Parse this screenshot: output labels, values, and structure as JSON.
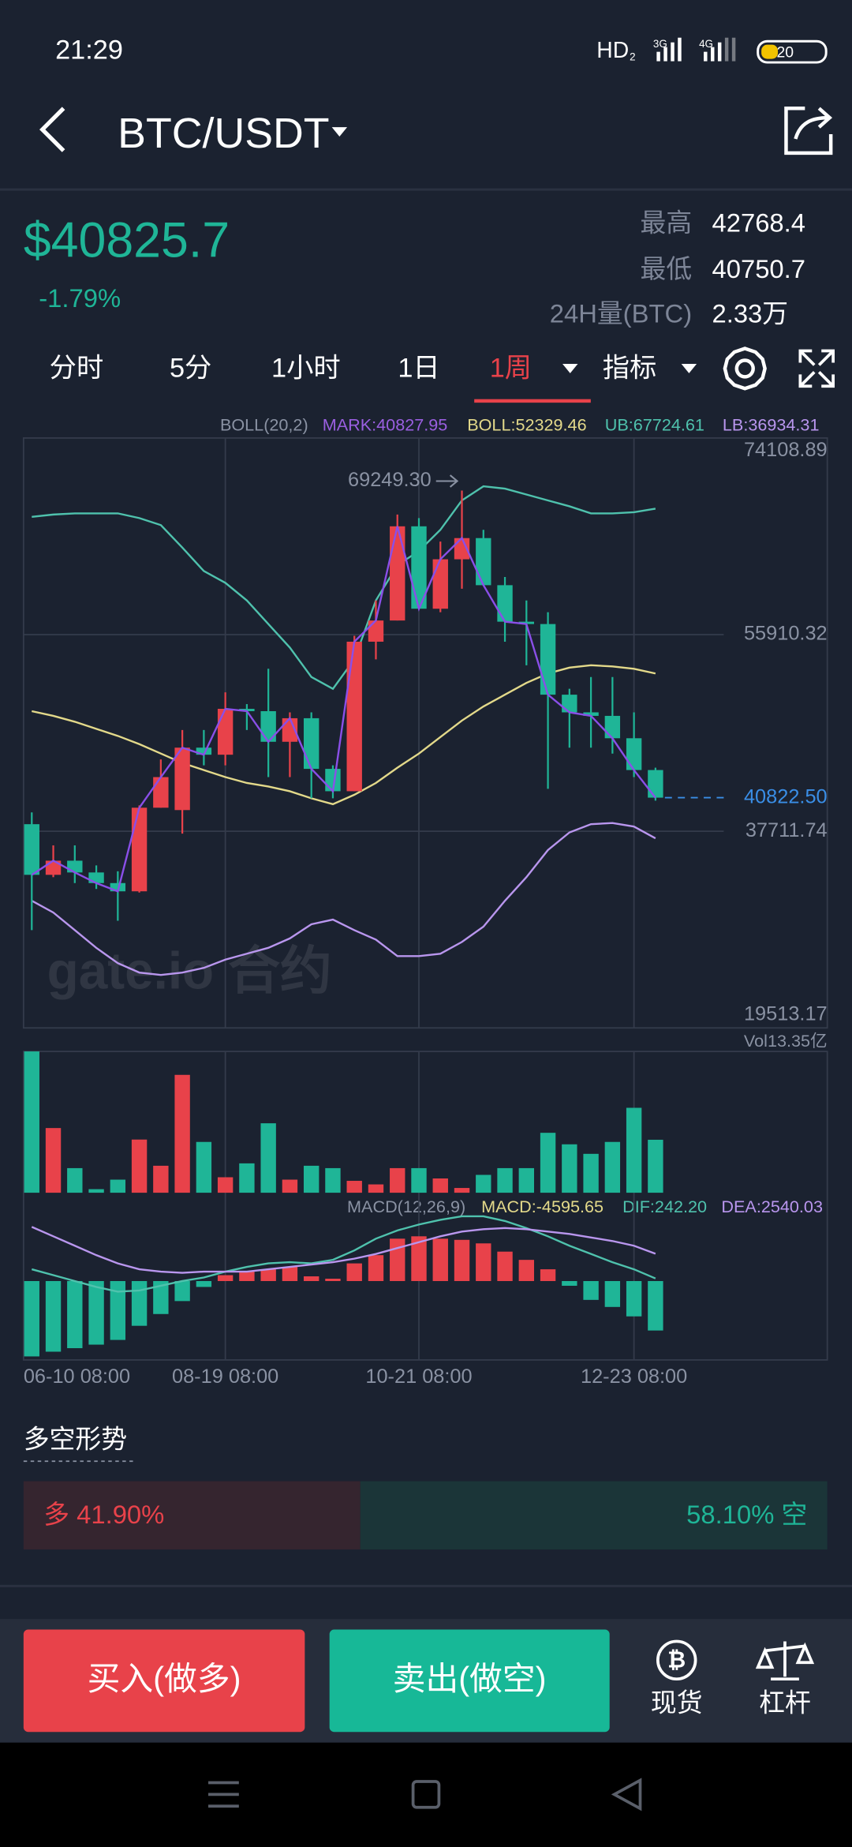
{
  "status_bar": {
    "time": "21:29",
    "hd": "HD",
    "sim": "2",
    "net1": "3G",
    "net2": "4G",
    "battery": "20"
  },
  "header": {
    "pair": "BTC/USDT"
  },
  "ticker": {
    "price": "$40825.7",
    "change": "-1.79%",
    "high_label": "最高",
    "high": "42768.4",
    "low_label": "最低",
    "low": "40750.7",
    "volume_label": "24H量(BTC)",
    "volume": "2.33万"
  },
  "tabs": {
    "items": [
      "分时",
      "5分",
      "1小时",
      "1日",
      "1周",
      "指标"
    ],
    "selected": 4
  },
  "watermark": "gate.io 合约",
  "chart_data": [
    {
      "type": "candlestick",
      "indicator_labels": [
        {
          "text": "BOLL(20,2)",
          "color": "#8a92a3"
        },
        {
          "text": "MARK:40827.95",
          "color": "#9a5fe0"
        },
        {
          "text": "BOLL:52329.46",
          "color": "#e3d98a"
        },
        {
          "text": "UB:67724.61",
          "color": "#4fc2ad"
        },
        {
          "text": "LB:36934.31",
          "color": "#b996ee"
        }
      ],
      "categories": [
        "06-10 08:00",
        null,
        null,
        null,
        null,
        null,
        null,
        null,
        null,
        "08-19 08:00",
        null,
        null,
        null,
        null,
        null,
        null,
        null,
        null,
        "10-21 08:00",
        null,
        null,
        null,
        null,
        null,
        null,
        null,
        null,
        null,
        "12-23 08:00",
        null
      ],
      "open": [
        38367,
        33681,
        34988,
        33899,
        32917,
        32154,
        39892,
        39674,
        45450,
        44796,
        49045,
        48827,
        45995,
        48174,
        43488,
        41418,
        55257,
        57218,
        65936,
        58308,
        62885,
        64846,
        60487,
        57109,
        56891,
        50353,
        48718,
        48392,
        46321,
        43379
      ],
      "high": [
        39456,
        36405,
        36405,
        34552,
        34008,
        40110,
        44360,
        47084,
        47084,
        50571,
        49481,
        52751,
        48718,
        48718,
        43815,
        55802,
        59071,
        67026,
        66699,
        64520,
        69249.3,
        65609,
        61250,
        59071,
        57981,
        50898,
        51988,
        51988,
        48718,
        43597
      ],
      "low": [
        28559,
        33463,
        32917,
        32372,
        29431,
        32045,
        39892,
        37495,
        43815,
        43815,
        47084,
        42725,
        42725,
        40764,
        40764,
        41418,
        53622,
        57218,
        58308,
        57981,
        60161,
        60487,
        55257,
        53077,
        41636,
        45450,
        45450,
        44904,
        42725,
        40546
      ],
      "close": [
        33681,
        34988,
        33899,
        32917,
        32154,
        39892,
        42725,
        45450,
        44796,
        49045,
        48827,
        45995,
        48174,
        43488,
        41418,
        55257,
        57218,
        65936,
        58308,
        62885,
        64846,
        60487,
        57109,
        56891,
        50353,
        48718,
        48392,
        46321,
        43379,
        40822.5
      ],
      "up_color": "#e8424a",
      "down_color": "#1fb597",
      "mark_line_color": "#8a4fe8",
      "series": [
        {
          "color": "#4fc2ad",
          "values": [
            66808,
            67026,
            67135,
            67135,
            67135,
            66699,
            66045,
            63975,
            61795,
            60706,
            59071,
            56892,
            54712,
            51988,
            50899,
            53623,
            59071,
            62340,
            63648,
            65609,
            68333,
            69641,
            69423,
            68878,
            68333,
            67789,
            67135,
            67135,
            67244,
            67571
          ]
        },
        {
          "color": "#e3d98a",
          "values": [
            48828,
            48392,
            47847,
            47193,
            46540,
            45777,
            44905,
            44033,
            43379,
            42726,
            42181,
            41854,
            41418,
            40764,
            40219,
            41091,
            42181,
            43597,
            44905,
            46431,
            47956,
            49264,
            50354,
            51443,
            52315,
            52860,
            53078,
            52969,
            52751,
            52315
          ]
        },
        {
          "color": "#b996ee",
          "values": [
            31284,
            30194,
            28560,
            26925,
            25508,
            24637,
            24419,
            24637,
            25072,
            25835,
            26380,
            26925,
            27797,
            29104,
            29540,
            28560,
            27688,
            26162,
            26162,
            26380,
            27470,
            28886,
            31284,
            33463,
            35969,
            37604,
            38367,
            38476,
            38149,
            37059
          ]
        }
      ],
      "high_annotation": "69249.30",
      "last_price": {
        "value": 40822.5,
        "label": "40822.50",
        "color": "#3a8ee6"
      },
      "ylim": [
        19513.17,
        74108.89
      ],
      "yticks": [
        74108.89,
        55910.32,
        37711.74,
        19513.17
      ],
      "grid": true
    },
    {
      "type": "bar",
      "label": "Vol13.35亿",
      "values": [
        35.6,
        16.3,
        6.2,
        0.9,
        3.3,
        13.4,
        6.8,
        29.7,
        12.8,
        3.9,
        7.4,
        17.5,
        3.3,
        6.8,
        6.2,
        3.0,
        2.1,
        6.2,
        6.2,
        3.6,
        1.2,
        4.5,
        6.2,
        6.2,
        15.1,
        12.2,
        9.8,
        12.8,
        21.4,
        13.35
      ],
      "ylim": [
        0,
        35.6
      ]
    },
    {
      "type": "macd",
      "indicator_labels": [
        {
          "text": "MACD(12,26,9)",
          "color": "#8a92a3"
        },
        {
          "text": "MACD:-4595.65",
          "color": "#e3d98a"
        },
        {
          "text": "DIF:242.20",
          "color": "#4fc2ad"
        },
        {
          "text": "DEA:2540.03",
          "color": "#b996ee"
        }
      ],
      "values": [
        -7003,
        -6565,
        -6237,
        -5909,
        -5471,
        -4158,
        -3064,
        -1860,
        -547,
        547,
        875,
        1094,
        1313,
        438,
        219,
        1641,
        2407,
        3939,
        4158,
        3939,
        3830,
        3501,
        2735,
        1969,
        1094,
        -438,
        -1750,
        -2407,
        -3282,
        -4595.65
      ],
      "series": [
        {
          "color": "#4fc2ad",
          "values": [
            1094,
            547,
            0,
            -547,
            -985,
            -875,
            -438,
            0,
            328,
            875,
            1313,
            1641,
            1750,
            1641,
            1969,
            2845,
            3939,
            4704,
            5251,
            5689,
            6017,
            6017,
            5580,
            4923,
            4158,
            3282,
            2516,
            1750,
            1094,
            242.2
          ]
        },
        {
          "color": "#b996ee",
          "values": [
            5032,
            4158,
            3282,
            2407,
            1641,
            1094,
            875,
            766,
            875,
            875,
            875,
            1094,
            1313,
            1532,
            1750,
            2079,
            2516,
            3064,
            3611,
            4158,
            4595,
            4814,
            4923,
            4814,
            4595,
            4377,
            4049,
            3720,
            3282,
            2540.03
          ]
        }
      ],
      "ylim": [
        -7330,
        5800
      ]
    }
  ],
  "sentiment": {
    "title": "多空形势",
    "long_label": "多 41.90%",
    "short_label": "58.10% 空",
    "long_percent": 41.9,
    "short_percent": 58.1
  },
  "actions": {
    "buy": "买入(做多)",
    "sell": "卖出(做空)",
    "spot": "现货",
    "margin": "杠杆"
  }
}
